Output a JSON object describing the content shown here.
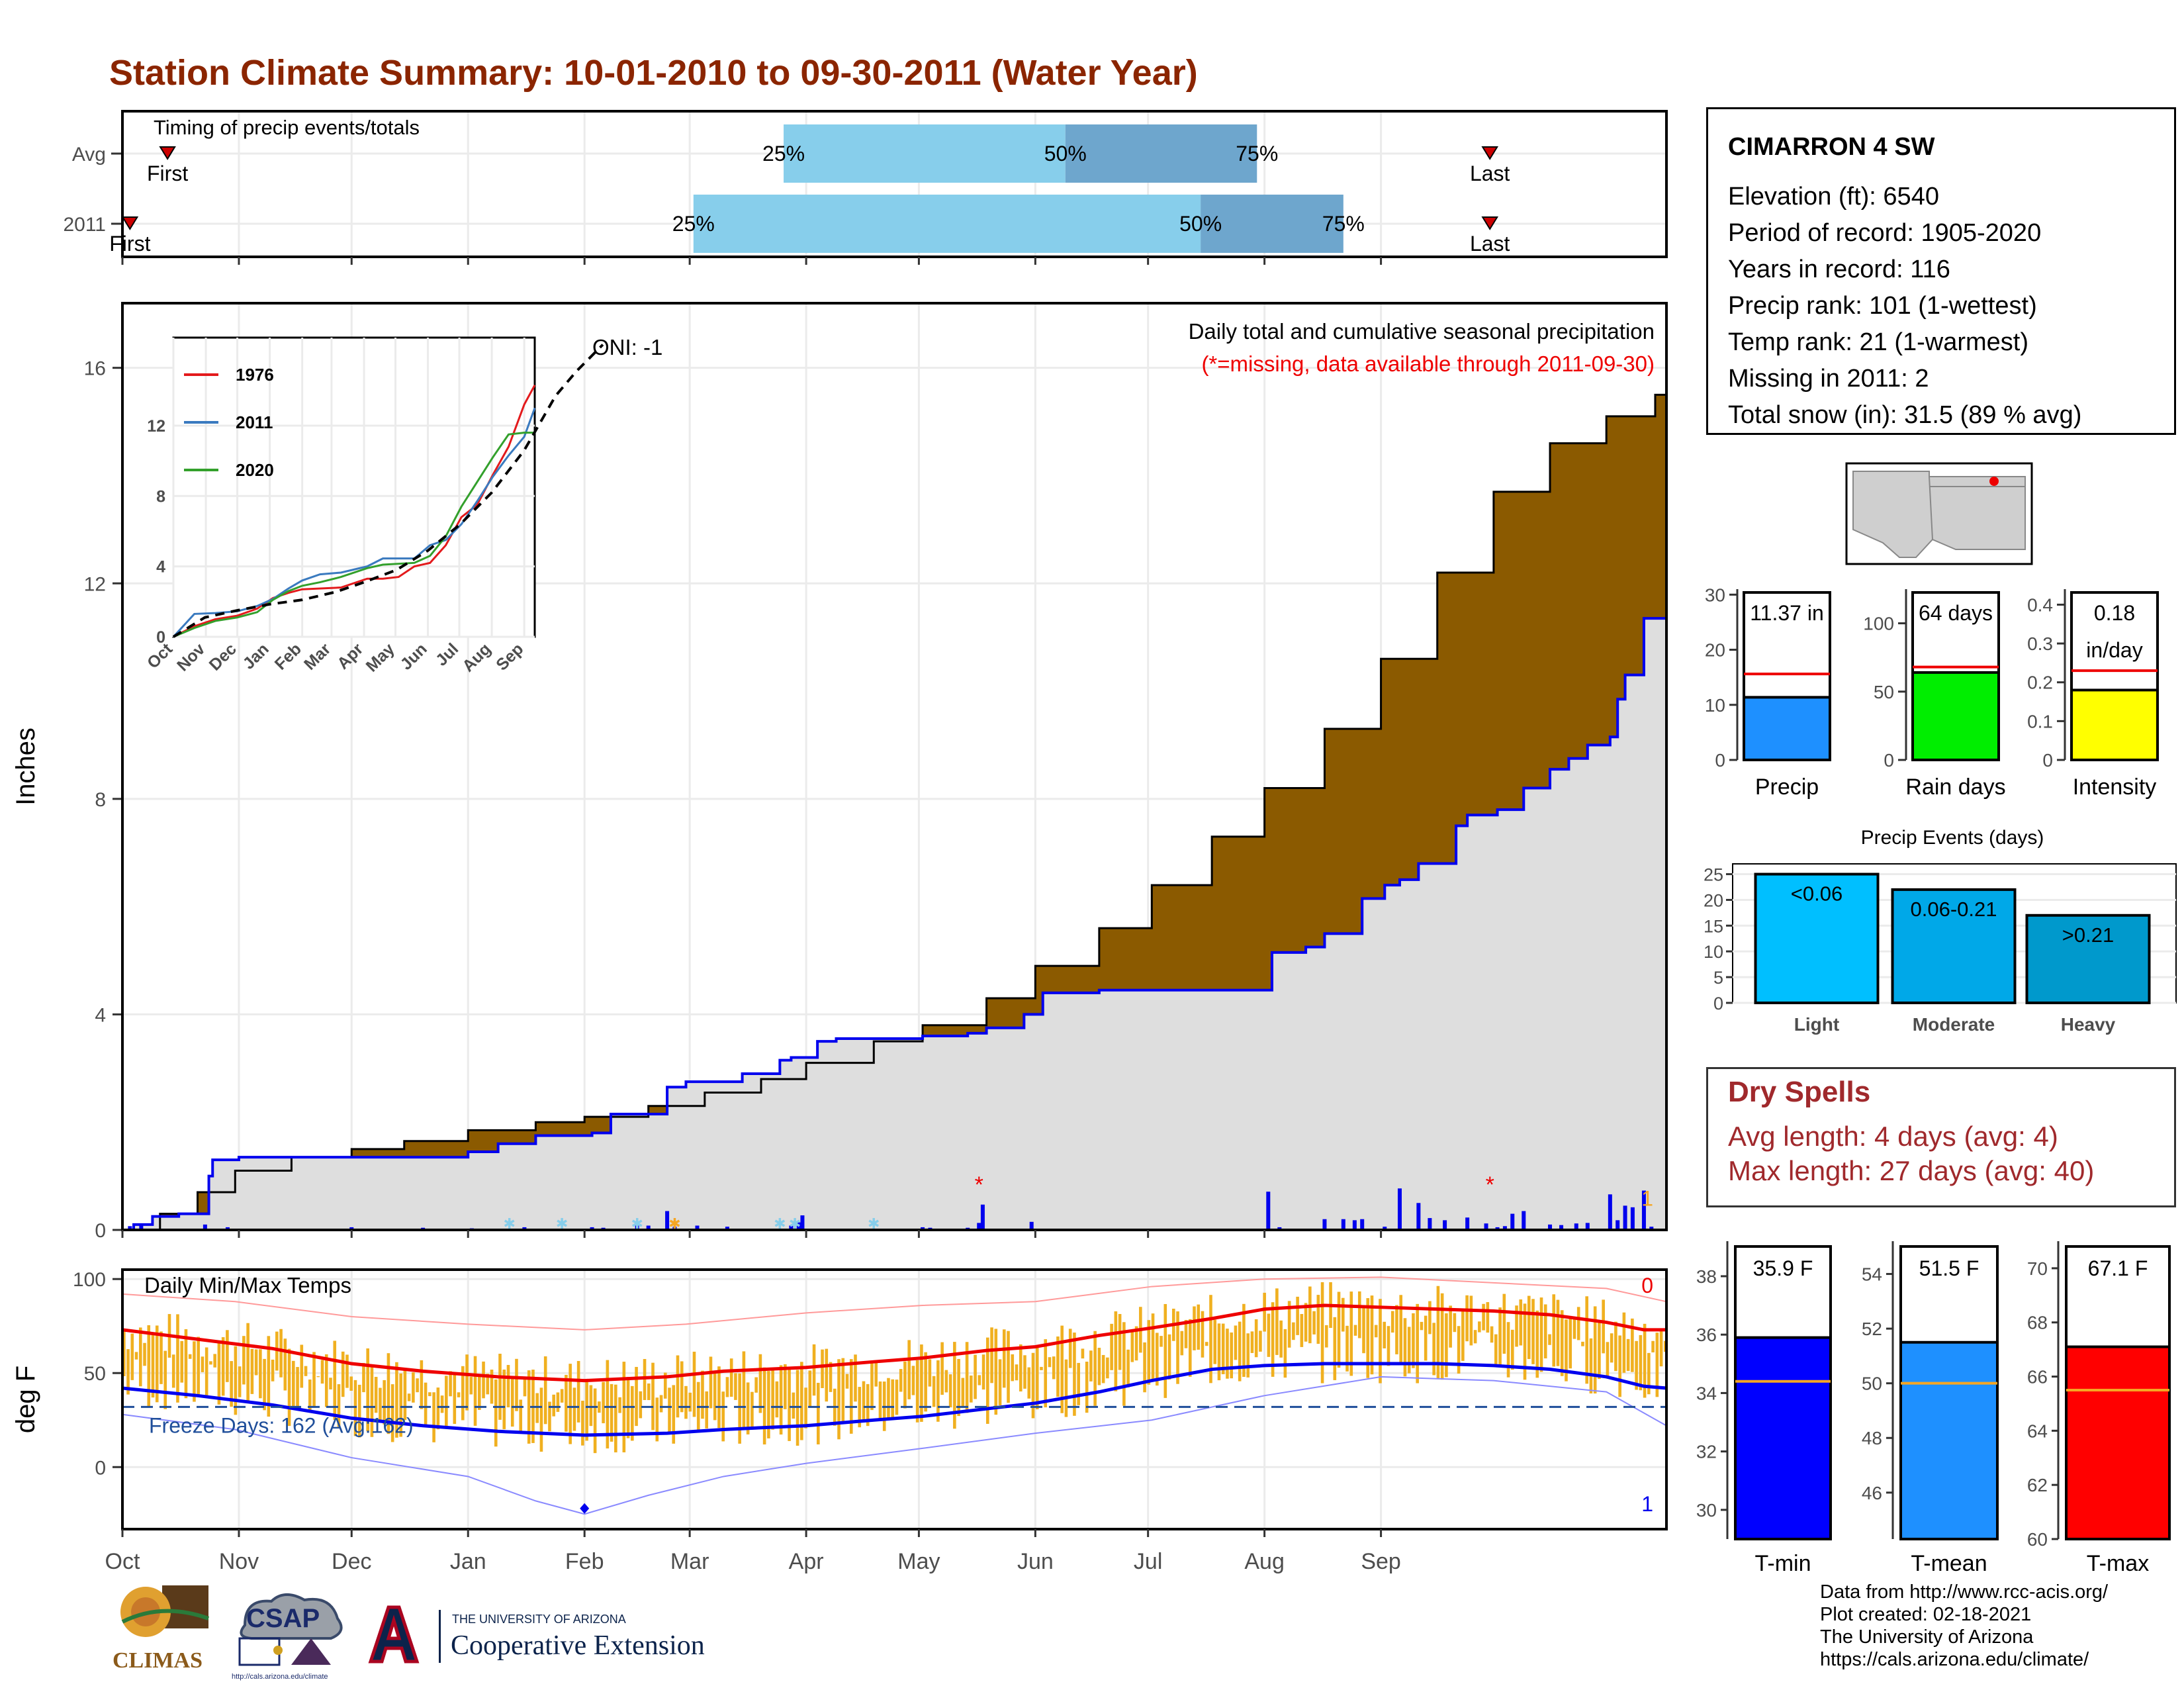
{
  "title": "Station Climate Summary: 10-01-2010 to 09-30-2011 (Water Year)",
  "colors": {
    "title": "#8b2500",
    "cum_avg_fill": "#8b5a00",
    "cum_above_fill": "#1a7d1a",
    "cum_current_line": "#0000ee",
    "cum_current_fill": "#dedede",
    "daily_bar": "#0000ee",
    "temp_bar": "#f0b020",
    "tmax_avg": "#ee0000",
    "tmin_avg": "#0000ee",
    "timing_light": "#87ceeb",
    "timing_dark": "#6ea6cd",
    "marker": "#cc0000"
  },
  "months": [
    "Oct",
    "Nov",
    "Dec",
    "Jan",
    "Feb",
    "Mar",
    "Apr",
    "May",
    "Jun",
    "Jul",
    "Aug",
    "Sep"
  ],
  "timing": {
    "label": "Timing of precip events/totals",
    "rows": [
      {
        "name": "Avg",
        "first_day": 12,
        "last_day": 364,
        "first_label": "First",
        "last_label": "Last",
        "p25": 176,
        "p50": 251,
        "p75": 302,
        "p25_label": "25%",
        "p50_label": "50%",
        "p75_label": "75%"
      },
      {
        "name": "2011",
        "first_day": 2,
        "last_day": 364,
        "first_label": "First",
        "last_label": "Last",
        "p25": 152,
        "p50": 287,
        "p75": 325,
        "p25_label": "25%",
        "p50_label": "50%",
        "p75_label": "75%"
      }
    ]
  },
  "precip": {
    "ylabel": "Inches",
    "yticks": [
      0,
      4,
      8,
      12,
      16
    ],
    "ylim": [
      0,
      17.2
    ],
    "oni": "ONI: -1",
    "note_title": "Daily total and cumulative seasonal precipitation",
    "note_missing": "(*=missing, data available through 2011-09-30)",
    "missing_count_label": "1",
    "avg_cumulative": [
      [
        0,
        0
      ],
      [
        10,
        0.3
      ],
      [
        20,
        0.7
      ],
      [
        30,
        1.1
      ],
      [
        45,
        1.35
      ],
      [
        61,
        1.5
      ],
      [
        75,
        1.65
      ],
      [
        92,
        1.85
      ],
      [
        110,
        2.0
      ],
      [
        123,
        2.1
      ],
      [
        140,
        2.3
      ],
      [
        155,
        2.55
      ],
      [
        170,
        2.8
      ],
      [
        182,
        3.1
      ],
      [
        200,
        3.5
      ],
      [
        213,
        3.8
      ],
      [
        230,
        4.3
      ],
      [
        243,
        4.9
      ],
      [
        260,
        5.6
      ],
      [
        274,
        6.4
      ],
      [
        290,
        7.3
      ],
      [
        304,
        8.2
      ],
      [
        320,
        9.3
      ],
      [
        335,
        10.6
      ],
      [
        350,
        12.2
      ],
      [
        365,
        13.7
      ],
      [
        380,
        14.6
      ],
      [
        395,
        15.1
      ],
      [
        408,
        15.5
      ],
      [
        411,
        15.55
      ]
    ],
    "current_cumulative": [
      [
        0,
        0
      ],
      [
        3,
        0.1
      ],
      [
        8,
        0.25
      ],
      [
        15,
        0.3
      ],
      [
        22,
        0.3
      ],
      [
        23,
        1.0
      ],
      [
        24,
        1.3
      ],
      [
        31,
        1.35
      ],
      [
        40,
        1.35
      ],
      [
        61,
        1.35
      ],
      [
        80,
        1.35
      ],
      [
        92,
        1.45
      ],
      [
        100,
        1.6
      ],
      [
        110,
        1.75
      ],
      [
        125,
        1.8
      ],
      [
        130,
        2.15
      ],
      [
        140,
        2.15
      ],
      [
        145,
        2.65
      ],
      [
        150,
        2.75
      ],
      [
        155,
        2.75
      ],
      [
        165,
        2.9
      ],
      [
        175,
        3.15
      ],
      [
        178,
        3.2
      ],
      [
        185,
        3.5
      ],
      [
        190,
        3.55
      ],
      [
        200,
        3.55
      ],
      [
        213,
        3.6
      ],
      [
        225,
        3.65
      ],
      [
        230,
        3.75
      ],
      [
        240,
        4.0
      ],
      [
        245,
        4.4
      ],
      [
        260,
        4.45
      ],
      [
        274,
        4.45
      ],
      [
        290,
        4.45
      ],
      [
        305,
        4.45
      ],
      [
        306,
        5.15
      ],
      [
        315,
        5.25
      ],
      [
        320,
        5.5
      ],
      [
        325,
        5.5
      ],
      [
        330,
        6.15
      ],
      [
        336,
        6.4
      ],
      [
        340,
        6.5
      ],
      [
        345,
        6.8
      ],
      [
        355,
        7.5
      ],
      [
        358,
        7.7
      ],
      [
        366,
        7.8
      ],
      [
        373,
        8.2
      ],
      [
        380,
        8.55
      ],
      [
        385,
        8.75
      ],
      [
        390,
        9.0
      ],
      [
        396,
        9.15
      ],
      [
        398,
        9.85
      ],
      [
        400,
        10.3
      ],
      [
        405,
        11.35
      ],
      [
        411,
        11.37
      ]
    ],
    "daily_bars": [
      [
        2,
        0.07
      ],
      [
        5,
        0.08
      ],
      [
        22,
        0.1
      ],
      [
        28,
        0.05
      ],
      [
        61,
        0.05
      ],
      [
        80,
        0.04
      ],
      [
        93,
        0.03
      ],
      [
        107,
        0.05
      ],
      [
        125,
        0.05
      ],
      [
        128,
        0.04
      ],
      [
        137,
        0.08
      ],
      [
        140,
        0.08
      ],
      [
        145,
        0.35
      ],
      [
        147,
        0.06
      ],
      [
        153,
        0.08
      ],
      [
        161,
        0.06
      ],
      [
        178,
        0.08
      ],
      [
        180,
        0.14
      ],
      [
        181,
        0.27
      ],
      [
        213,
        0.05
      ],
      [
        215,
        0.04
      ],
      [
        225,
        0.04
      ],
      [
        228,
        0.13
      ],
      [
        229,
        0.47
      ],
      [
        242,
        0.15
      ],
      [
        305,
        0.71
      ],
      [
        308,
        0.05
      ],
      [
        320,
        0.2
      ],
      [
        325,
        0.2
      ],
      [
        328,
        0.18
      ],
      [
        330,
        0.2
      ],
      [
        336,
        0.06
      ],
      [
        340,
        0.77
      ],
      [
        345,
        0.5
      ],
      [
        348,
        0.22
      ],
      [
        352,
        0.18
      ],
      [
        358,
        0.23
      ],
      [
        363,
        0.12
      ],
      [
        366,
        0.05
      ],
      [
        368,
        0.07
      ],
      [
        370,
        0.3
      ],
      [
        373,
        0.35
      ],
      [
        380,
        0.1
      ],
      [
        383,
        0.09
      ],
      [
        387,
        0.12
      ],
      [
        390,
        0.13
      ],
      [
        396,
        0.66
      ],
      [
        398,
        0.18
      ],
      [
        400,
        0.45
      ],
      [
        402,
        0.42
      ],
      [
        405,
        0.73
      ],
      [
        407,
        0.06
      ]
    ],
    "missing_days": [
      228,
      364
    ],
    "event_markers": [
      {
        "day": 103,
        "color": "#87ceeb"
      },
      {
        "day": 117,
        "color": "#87ceeb"
      },
      {
        "day": 137,
        "color": "#87ceeb"
      },
      {
        "day": 147,
        "color": "#f5a623"
      },
      {
        "day": 175,
        "color": "#87ceeb"
      },
      {
        "day": 179,
        "color": "#87ceeb"
      },
      {
        "day": 200,
        "color": "#87ceeb"
      }
    ]
  },
  "inset": {
    "yticks": [
      0,
      4,
      8,
      12
    ],
    "months": [
      "Oct",
      "Nov",
      "Dec",
      "Jan",
      "Feb",
      "Mar",
      "Apr",
      "May",
      "Jun",
      "Jul",
      "Aug",
      "Sep"
    ],
    "series": [
      {
        "name": "1976",
        "color": "#e31a1c",
        "values": [
          [
            0,
            0
          ],
          [
            20,
            0.6
          ],
          [
            40,
            1.0
          ],
          [
            61,
            1.2
          ],
          [
            80,
            1.6
          ],
          [
            95,
            2.2
          ],
          [
            110,
            2.5
          ],
          [
            123,
            2.7
          ],
          [
            160,
            2.8
          ],
          [
            185,
            3.3
          ],
          [
            200,
            3.3
          ],
          [
            215,
            3.4
          ],
          [
            230,
            4.0
          ],
          [
            245,
            4.2
          ],
          [
            260,
            5.2
          ],
          [
            275,
            6.8
          ],
          [
            290,
            7.5
          ],
          [
            305,
            9.2
          ],
          [
            320,
            10.8
          ],
          [
            335,
            13.2
          ],
          [
            345,
            14.3
          ]
        ]
      },
      {
        "name": "2011",
        "color": "#3a7abf",
        "values": [
          [
            0,
            0
          ],
          [
            20,
            1.3
          ],
          [
            40,
            1.35
          ],
          [
            61,
            1.45
          ],
          [
            80,
            1.75
          ],
          [
            95,
            2.15
          ],
          [
            110,
            2.75
          ],
          [
            123,
            3.2
          ],
          [
            140,
            3.55
          ],
          [
            160,
            3.65
          ],
          [
            185,
            4.0
          ],
          [
            200,
            4.45
          ],
          [
            230,
            4.45
          ],
          [
            245,
            5.2
          ],
          [
            260,
            5.5
          ],
          [
            275,
            6.4
          ],
          [
            290,
            7.7
          ],
          [
            305,
            9.1
          ],
          [
            320,
            10.3
          ],
          [
            335,
            11.37
          ],
          [
            345,
            13.0
          ]
        ]
      },
      {
        "name": "2020",
        "color": "#33a02c",
        "values": [
          [
            0,
            0
          ],
          [
            20,
            0.5
          ],
          [
            40,
            0.9
          ],
          [
            61,
            1.1
          ],
          [
            80,
            1.4
          ],
          [
            95,
            2.1
          ],
          [
            110,
            2.6
          ],
          [
            123,
            2.9
          ],
          [
            140,
            3.1
          ],
          [
            160,
            3.4
          ],
          [
            185,
            3.9
          ],
          [
            200,
            4.1
          ],
          [
            230,
            4.2
          ],
          [
            245,
            4.6
          ],
          [
            260,
            5.7
          ],
          [
            275,
            7.4
          ],
          [
            290,
            8.8
          ],
          [
            305,
            10.2
          ],
          [
            320,
            11.5
          ],
          [
            335,
            11.6
          ],
          [
            345,
            11.6
          ]
        ]
      }
    ],
    "avg": [
      [
        0,
        0
      ],
      [
        30,
        1.1
      ],
      [
        61,
        1.5
      ],
      [
        92,
        1.85
      ],
      [
        123,
        2.1
      ],
      [
        155,
        2.55
      ],
      [
        182,
        3.1
      ],
      [
        213,
        3.8
      ],
      [
        243,
        4.9
      ],
      [
        274,
        6.4
      ],
      [
        304,
        8.2
      ],
      [
        335,
        10.6
      ],
      [
        365,
        13.7
      ],
      [
        385,
        15.1
      ],
      [
        405,
        16.3
      ],
      [
        410,
        16.6
      ]
    ]
  },
  "temps": {
    "title": "Daily Min/Max Temps",
    "ylabel": "deg F",
    "yticks": [
      0,
      50,
      100
    ],
    "ylim": [
      -33,
      105
    ],
    "freeze_label": "Freeze Days: 162 (Avg:162)",
    "freeze_line": 32,
    "missing_max_label": "0",
    "missing_min_label": "1",
    "avg_max": [
      [
        0,
        73
      ],
      [
        20,
        68
      ],
      [
        40,
        63
      ],
      [
        61,
        55
      ],
      [
        80,
        51
      ],
      [
        100,
        48
      ],
      [
        123,
        46
      ],
      [
        145,
        48
      ],
      [
        160,
        51
      ],
      [
        182,
        53
      ],
      [
        200,
        56
      ],
      [
        213,
        58
      ],
      [
        230,
        62
      ],
      [
        243,
        64
      ],
      [
        260,
        70
      ],
      [
        274,
        74
      ],
      [
        290,
        79
      ],
      [
        304,
        84
      ],
      [
        320,
        86
      ],
      [
        335,
        85
      ],
      [
        350,
        84
      ],
      [
        365,
        83
      ],
      [
        380,
        81
      ],
      [
        395,
        77
      ],
      [
        405,
        73
      ],
      [
        411,
        73
      ]
    ],
    "avg_min": [
      [
        0,
        42
      ],
      [
        20,
        38
      ],
      [
        40,
        33
      ],
      [
        61,
        26
      ],
      [
        80,
        22
      ],
      [
        100,
        19
      ],
      [
        123,
        17
      ],
      [
        145,
        18
      ],
      [
        160,
        20
      ],
      [
        182,
        22
      ],
      [
        200,
        25
      ],
      [
        213,
        27
      ],
      [
        230,
        31
      ],
      [
        243,
        34
      ],
      [
        260,
        40
      ],
      [
        274,
        46
      ],
      [
        290,
        52
      ],
      [
        304,
        54
      ],
      [
        320,
        55
      ],
      [
        335,
        55
      ],
      [
        350,
        55
      ],
      [
        365,
        54
      ],
      [
        380,
        52
      ],
      [
        395,
        48
      ],
      [
        405,
        43
      ],
      [
        411,
        42
      ]
    ],
    "record_max": [
      [
        0,
        92
      ],
      [
        30,
        88
      ],
      [
        61,
        80
      ],
      [
        92,
        76
      ],
      [
        123,
        73
      ],
      [
        150,
        76
      ],
      [
        182,
        82
      ],
      [
        213,
        86
      ],
      [
        243,
        88
      ],
      [
        274,
        96
      ],
      [
        304,
        100
      ],
      [
        335,
        101
      ],
      [
        365,
        98
      ],
      [
        395,
        95
      ],
      [
        411,
        88
      ]
    ],
    "record_min": [
      [
        0,
        28
      ],
      [
        30,
        20
      ],
      [
        61,
        5
      ],
      [
        92,
        -5
      ],
      [
        110,
        -18
      ],
      [
        123,
        -25
      ],
      [
        140,
        -15
      ],
      [
        160,
        -5
      ],
      [
        182,
        2
      ],
      [
        213,
        10
      ],
      [
        243,
        18
      ],
      [
        274,
        25
      ],
      [
        304,
        38
      ],
      [
        335,
        48
      ],
      [
        365,
        46
      ],
      [
        395,
        40
      ],
      [
        411,
        22
      ]
    ],
    "obs_min_marker": {
      "day": 123,
      "value": -22
    }
  },
  "station": {
    "name": "CIMARRON 4 SW",
    "lines": [
      "Elevation (ft): 6540",
      "Period of record: 1905-2020",
      "Years in record: 116",
      "Precip rank: 101 (1-wettest)",
      "Temp rank: 21 (1-warmest)",
      "Missing in 2011: 2",
      "Total snow (in): 31.5 (89 % avg)"
    ]
  },
  "mini_bars": [
    {
      "label": "Precip",
      "value": 11.37,
      "avg": 15.6,
      "text": "11.37 in",
      "text2": "",
      "ymax": 31,
      "yticks": [
        0,
        10,
        20,
        30
      ],
      "color": "#1e90ff"
    },
    {
      "label": "Rain days",
      "value": 64,
      "avg": 68,
      "text": "64 days",
      "text2": "",
      "ymax": 125,
      "yticks": [
        0,
        50,
        100
      ],
      "color": "#00ee00"
    },
    {
      "label": "Intensity",
      "value": 0.18,
      "avg": 0.23,
      "text": "0.18",
      "text2": "in/day",
      "ymax": 0.44,
      "yticks": [
        0.0,
        0.1,
        0.2,
        0.3,
        0.4
      ],
      "color": "#ffff00"
    }
  ],
  "events": {
    "title": "Precip Events (days)",
    "categories": [
      "Light",
      "Moderate",
      "Heavy"
    ],
    "values": [
      25,
      22,
      17
    ],
    "labels": [
      "<0.06",
      "0.06-0.21",
      ">0.21"
    ],
    "colors": [
      "#00bfff",
      "#00a8e8",
      "#0099cc"
    ],
    "yticks": [
      0,
      5,
      10,
      15,
      20,
      25
    ]
  },
  "dry_spells": {
    "title": "Dry Spells",
    "avg_line": "Avg length: 4 days (avg: 4)",
    "max_line": "Max length: 27 days (avg: 40)"
  },
  "temp_bars": [
    {
      "label": "T-min",
      "value": 35.9,
      "avg": 34.4,
      "text": "35.9 F",
      "ymin": 29,
      "ymax": 39.2,
      "yticks": [
        30,
        32,
        34,
        36,
        38
      ],
      "color": "#0000ff"
    },
    {
      "label": "T-mean",
      "value": 51.5,
      "avg": 50.0,
      "text": "51.5 F",
      "ymin": 44.3,
      "ymax": 55.2,
      "yticks": [
        46,
        48,
        50,
        52,
        54
      ],
      "color": "#1e90ff"
    },
    {
      "label": "T-max",
      "value": 67.1,
      "avg": 65.5,
      "text": "67.1 F",
      "ymin": 60,
      "ymax": 71,
      "yticks": [
        60,
        62,
        64,
        66,
        68,
        70
      ],
      "color": "#ff0000"
    }
  ],
  "credits": [
    "Data from http://www.rcc-acis.org/",
    "Plot created: 02-18-2021",
    "The University of Arizona",
    "https://cals.arizona.edu/climate/"
  ],
  "logos": {
    "climas": "CLIMAS",
    "csap": "CSAP",
    "csap_url": "http://cals.arizona.edu/climate",
    "ua_small": "THE UNIVERSITY OF ARIZONA",
    "ua_big": "Cooperative Extension"
  }
}
